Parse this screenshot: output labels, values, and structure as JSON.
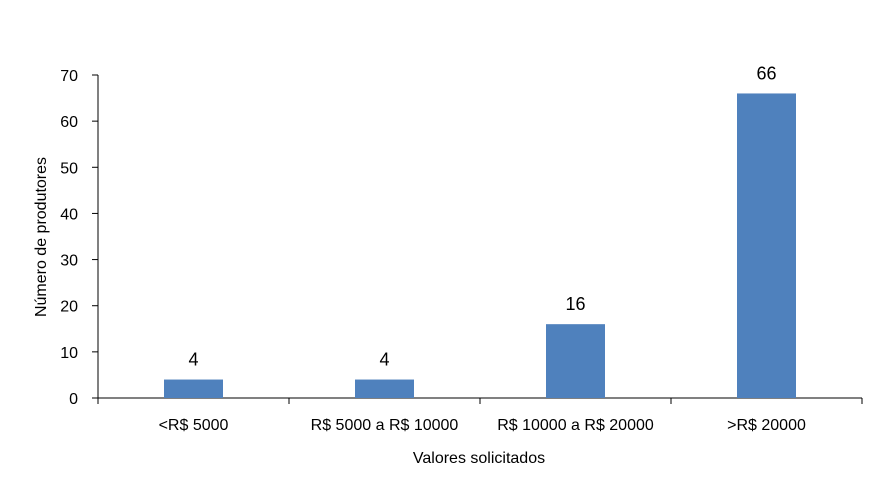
{
  "chart_data": {
    "type": "bar",
    "title": "",
    "xlabel": "Valores solicitados",
    "ylabel": "Número de produtores",
    "categories": [
      "<R$ 5000",
      "R$ 5000 a R$ 10000",
      "R$ 10000 a R$ 20000",
      ">R$ 20000"
    ],
    "values": [
      4,
      4,
      16,
      66
    ],
    "data_labels": [
      "4",
      "4",
      "16",
      "66"
    ],
    "ylim": [
      0,
      70
    ],
    "yticks": [
      0,
      10,
      20,
      30,
      40,
      50,
      60,
      70
    ],
    "ytick_labels": [
      "0",
      "10",
      "20",
      "30",
      "40",
      "50",
      "60",
      "70"
    ],
    "grid": false,
    "legend": "none",
    "bar_color": "#4F81BD"
  }
}
